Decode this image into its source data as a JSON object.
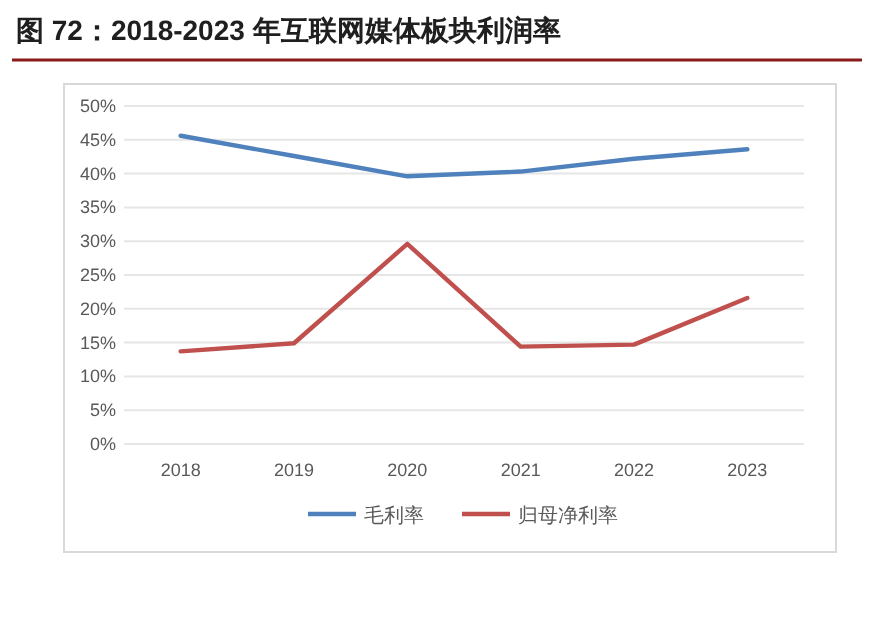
{
  "chart_data": {
    "type": "line",
    "title": "图 72：2018-2023 年互联网媒体板块利润率",
    "categories": [
      "2018",
      "2019",
      "2020",
      "2021",
      "2022",
      "2023"
    ],
    "series": [
      {
        "name": "毛利率",
        "color": "#4f81bd",
        "values": [
          45.6,
          42.6,
          39.6,
          40.3,
          42.2,
          43.6
        ]
      },
      {
        "name": "归母净利率",
        "color": "#c0504d",
        "values": [
          13.7,
          14.9,
          29.6,
          14.4,
          14.7,
          21.6
        ]
      }
    ],
    "ylim": [
      0,
      50
    ],
    "yticks": [
      {
        "value": 0,
        "label": "0%"
      },
      {
        "value": 5,
        "label": "5%"
      },
      {
        "value": 10,
        "label": "10%"
      },
      {
        "value": 15,
        "label": "15%"
      },
      {
        "value": 20,
        "label": "20%"
      },
      {
        "value": 25,
        "label": "25%"
      },
      {
        "value": 30,
        "label": "30%"
      },
      {
        "value": 35,
        "label": "35%"
      },
      {
        "value": 40,
        "label": "40%"
      },
      {
        "value": 45,
        "label": "45%"
      },
      {
        "value": 50,
        "label": "50%"
      }
    ],
    "grid": "y",
    "legend": "bottom",
    "marker": "none",
    "line_style": "solid"
  }
}
